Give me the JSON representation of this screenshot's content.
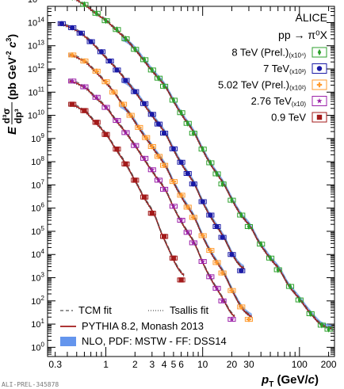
{
  "chart_data": {
    "type": "scatter",
    "title": "",
    "collaboration": "ALICE",
    "process": "pp → π⁰X",
    "xlabel": {
      "p": "p",
      "sub": "T",
      "rest": " (GeV/",
      "c": "c",
      "close": ")"
    },
    "ylabel": {
      "E": "E",
      "num": "d³σ",
      "den": "dp³",
      "units_a": " (pb GeV",
      "exp1": "-2",
      "units_c": " c",
      "exp2": "3",
      "close": ")"
    },
    "x_scale": "log",
    "y_scale": "log",
    "xlim": [
      0.25,
      230
    ],
    "ylim": [
      0.4,
      500000000000000
    ],
    "x_ticks": [
      {
        "v": 0.3,
        "label": "0.3"
      },
      {
        "v": 1,
        "label": "1"
      },
      {
        "v": 2,
        "label": "2"
      },
      {
        "v": 3,
        "label": "3"
      },
      {
        "v": 4,
        "label": "4"
      },
      {
        "v": 5,
        "label": "5"
      },
      {
        "v": 6,
        "label": "6"
      },
      {
        "v": 10,
        "label": "10"
      },
      {
        "v": 20,
        "label": "20"
      },
      {
        "v": 30,
        "label": "30"
      },
      {
        "v": 100,
        "label": "100"
      },
      {
        "v": 200,
        "label": "200"
      }
    ],
    "y_tick_exponents": [
      0,
      1,
      2,
      3,
      4,
      5,
      6,
      7,
      8,
      9,
      10,
      11,
      12,
      13,
      14,
      15
    ],
    "y_tick_base": "10",
    "legend_position": "top-right",
    "series": [
      {
        "name": "8 TeV (Prel.)",
        "scale": "(x10⁴)",
        "color": "#2ca02c",
        "marker": "diamond",
        "x": [
          0.35,
          0.45,
          0.6,
          0.8,
          1.0,
          1.3,
          1.6,
          2.0,
          2.5,
          3.0,
          3.5,
          4.0,
          5.0,
          6.0,
          7.0,
          8.0,
          10,
          12,
          14,
          16,
          20,
          25,
          30,
          40,
          50,
          60,
          80,
          100,
          130,
          170,
          200
        ],
        "y": [
          2000000000000000.0,
          1200000000000000.0,
          600000000000000.0,
          250000000000000.0,
          120000000000000.0,
          50000000000000.0,
          20000000000000.0,
          7000000000000.0,
          2500000000000.0,
          900000000000.0,
          400000000000.0,
          180000000000.0,
          45000000000.0,
          13000000000.0,
          4500000000.0,
          1700000000.0,
          350000000.0,
          90000000.0,
          30000000.0,
          11000000.0,
          2200000.0,
          500000.0,
          160000.0,
          28000.0,
          7000,
          2200,
          420,
          110,
          28,
          9,
          6
        ]
      },
      {
        "name": "7 TeV",
        "scale": "(x10³)",
        "color": "#1a1aa6",
        "marker": "circle",
        "x": [
          0.35,
          0.45,
          0.55,
          0.7,
          0.9,
          1.1,
          1.3,
          1.6,
          2.0,
          2.5,
          3.0,
          3.5,
          4.0,
          5.0,
          6.0,
          7.0,
          8.0,
          10,
          12,
          14,
          16,
          20,
          25
        ],
        "y": [
          90000000000000.0,
          60000000000000.0,
          35000000000000.0,
          15000000000000.0,
          5500000000000.0,
          2200000000000.0,
          900000000000.0,
          320000000000.0,
          105000000000.0,
          32000000000.0,
          11000000000.0,
          4200000000.0,
          1700000000.0,
          360000000.0,
          95000000.0,
          31000000.0,
          11000000.0,
          1900000.0,
          500000.0,
          160000.0,
          55000.0,
          10000.0,
          2000
        ]
      },
      {
        "name": "5.02 TeV (Prel.)",
        "scale": "(x10²)",
        "color": "#ff9a2e",
        "marker": "cross",
        "x": [
          0.45,
          0.6,
          0.8,
          1.0,
          1.2,
          1.5,
          1.8,
          2.2,
          2.6,
          3.0,
          3.5,
          4.0,
          5.0,
          6.0,
          7.0,
          8.0,
          10,
          12,
          14,
          16,
          20,
          25,
          30
        ],
        "y": [
          4000000000000.0,
          2200000000000.0,
          800000000000.0,
          280000000000.0,
          100000000000.0,
          30000000000.0,
          10000000000.0,
          3000000000.0,
          1100000000.0,
          450000000.0,
          170000000.0,
          70000000.0,
          14000000.0,
          3600000.0,
          1100000.0,
          400000.0,
          65000.0,
          15000.0,
          4500,
          1600,
          280,
          55,
          16
        ]
      },
      {
        "name": "2.76 TeV",
        "scale": "(x10)",
        "color": "#9b1fa8",
        "marker": "star",
        "x": [
          0.45,
          0.6,
          0.8,
          1.0,
          1.3,
          1.6,
          2.0,
          2.5,
          3.0,
          3.5,
          4.0,
          5.0,
          6.0,
          7.0,
          8.0,
          10,
          12,
          14,
          16,
          20
        ],
        "y": [
          300000000000.0,
          170000000000.0,
          60000000000.0,
          22000000000.0,
          6000000000.0,
          1800000000.0,
          500000000.0,
          140000000.0,
          45000000.0,
          16000000.0,
          6500000.0,
          1200000.0,
          300000.0,
          90000.0,
          32000.0,
          5000.0,
          1100.0,
          350,
          100,
          16
        ]
      },
      {
        "name": "0.9 TeV",
        "scale": "",
        "color": "#a31a1a",
        "marker": "square",
        "x": [
          0.45,
          0.6,
          0.8,
          1.0,
          1.3,
          1.6,
          2.0,
          2.5,
          3.0,
          4.0,
          5.0,
          6.0
        ],
        "y": [
          30000000000.0,
          16000000000.0,
          5000000000.0,
          1500000000.0,
          350000000.0,
          80000000.0,
          16000000.0,
          3000000.0,
          600000.0,
          60000.0,
          7000.0,
          800
        ]
      }
    ],
    "fit_legend": [
      {
        "name": "TCM fit",
        "style": "dashed",
        "color": "#555555"
      },
      {
        "name": "Tsallis fit",
        "style": "dotted",
        "color": "#555555"
      },
      {
        "name": "PYTHIA 8.2, Monash 2013",
        "style": "solid",
        "color": "#a31a1a"
      },
      {
        "name": "NLO, PDF: MSTW - FF: DSS14",
        "style": "band",
        "color": "#6495ed"
      }
    ],
    "watermark": "ALI-PREL-345878"
  }
}
